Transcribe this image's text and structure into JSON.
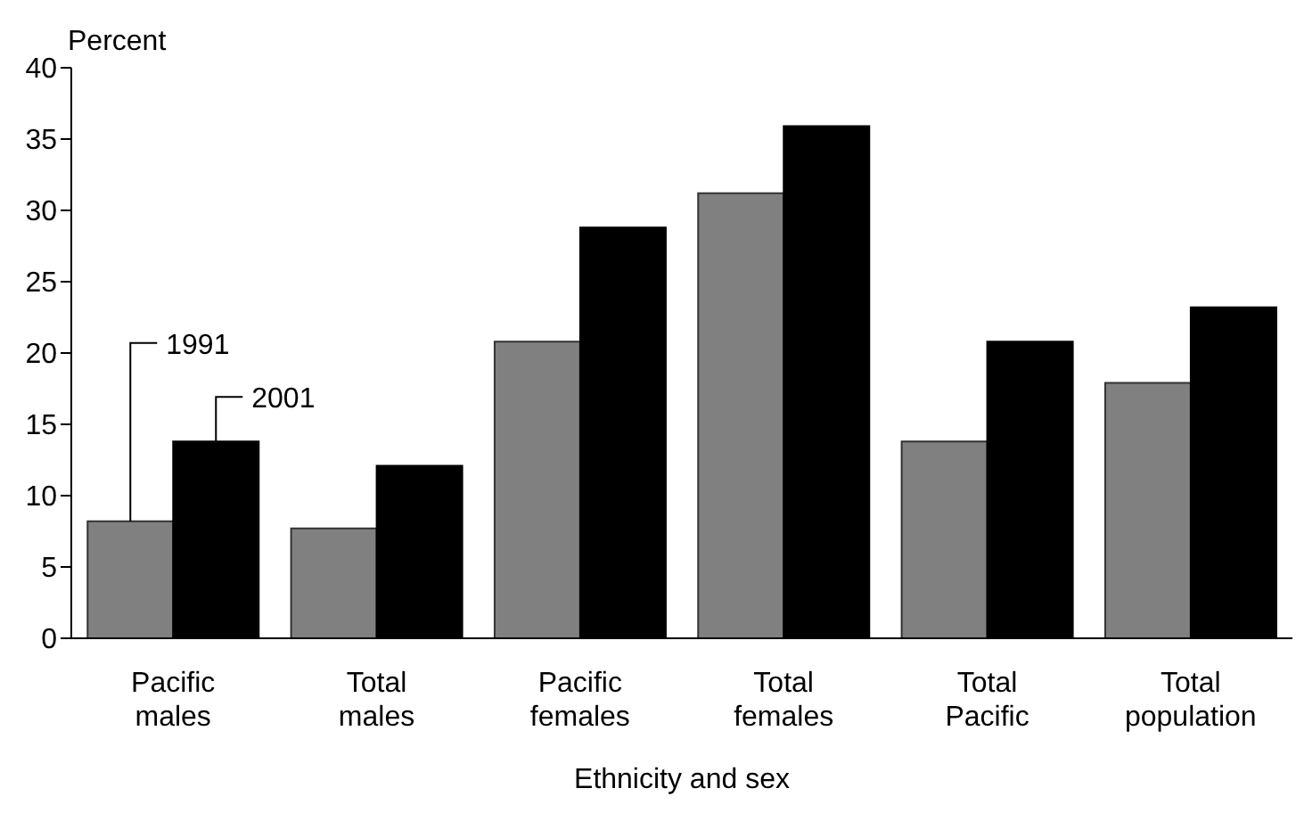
{
  "chart_data": {
    "type": "bar",
    "xlabel": "Ethnicity and sex",
    "ylabel": "Percent",
    "categories": [
      "Pacific males",
      "Total males",
      "Pacific females",
      "Total females",
      "Total Pacific",
      "Total population"
    ],
    "series": [
      {
        "name": "1991",
        "color": "#808080",
        "values": [
          8.2,
          7.7,
          20.8,
          31.2,
          13.8,
          17.9
        ]
      },
      {
        "name": "2001",
        "color": "#000000",
        "values": [
          13.8,
          12.1,
          28.8,
          35.9,
          20.8,
          23.2
        ]
      }
    ],
    "ylim": [
      0,
      40
    ],
    "yticks": [
      0,
      5,
      10,
      15,
      20,
      25,
      30,
      35,
      40
    ],
    "grid": false,
    "legend": "bottom left"
  }
}
